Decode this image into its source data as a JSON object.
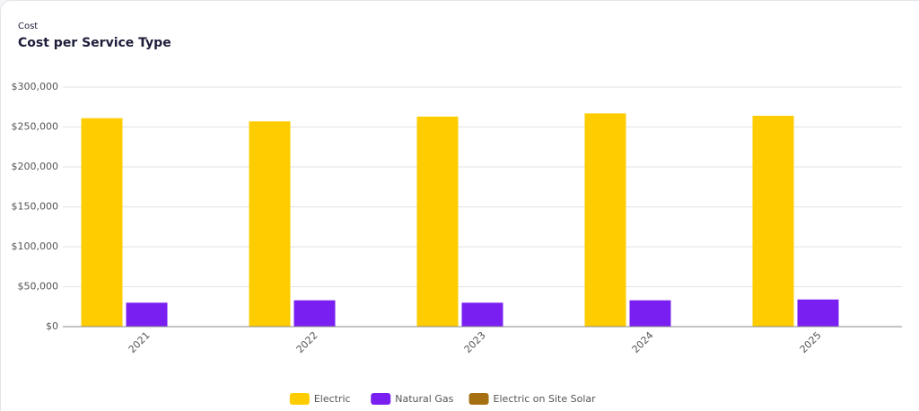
{
  "chart_data": {
    "type": "bar",
    "subtitle": "Cost",
    "title": "Cost per Service Type",
    "categories": [
      "2021",
      "2022",
      "2023",
      "2024",
      "2025"
    ],
    "series": [
      {
        "name": "Electric",
        "color": "#ffcc00",
        "values": [
          261000,
          257000,
          263000,
          267000,
          264000
        ]
      },
      {
        "name": "Natural Gas",
        "color": "#7a1ff2",
        "values": [
          30000,
          33000,
          30000,
          33000,
          34000
        ]
      },
      {
        "name": "Electric on Site Solar",
        "color": "#a56f12",
        "values": [
          0,
          0,
          0,
          0,
          0
        ]
      }
    ],
    "ylim": [
      0,
      300000
    ],
    "yticks": [
      {
        "value": 0,
        "label": "$0"
      },
      {
        "value": 50000,
        "label": "$50,000"
      },
      {
        "value": 100000,
        "label": "$100,000"
      },
      {
        "value": 150000,
        "label": "$150,000"
      },
      {
        "value": 200000,
        "label": "$200,000"
      },
      {
        "value": 250000,
        "label": "$250,000"
      },
      {
        "value": 300000,
        "label": "$300,000"
      }
    ],
    "grid": true,
    "legend": "bottom"
  }
}
